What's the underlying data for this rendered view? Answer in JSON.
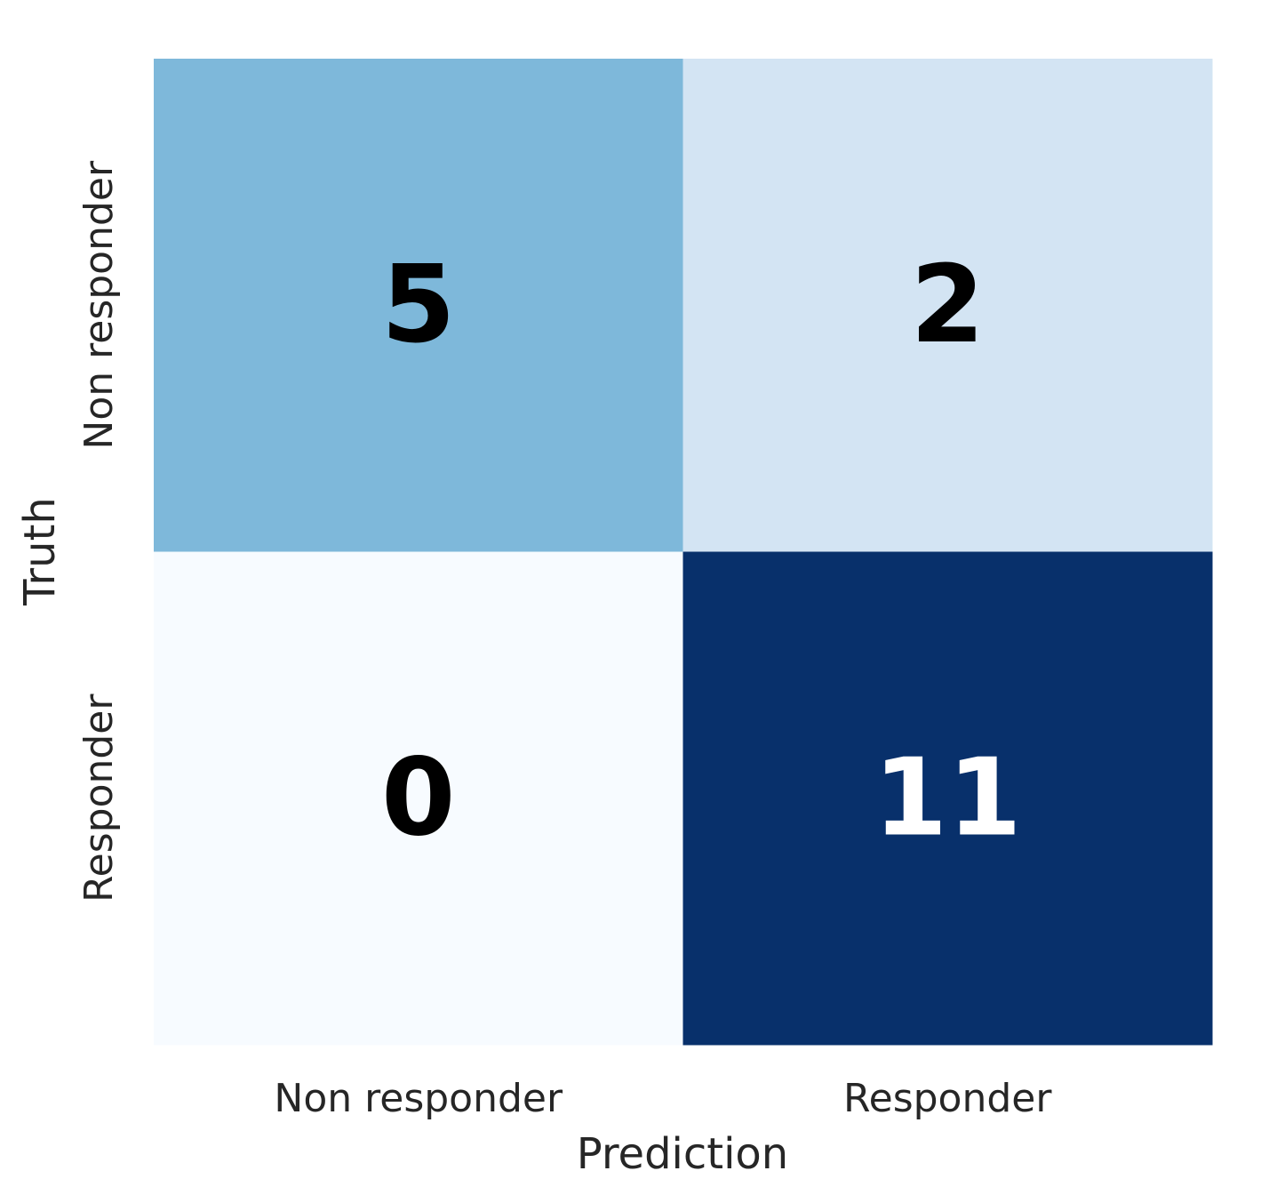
{
  "chart_data": {
    "type": "heatmap",
    "xlabel": "Prediction",
    "ylabel": "Truth",
    "x_categories": [
      "Non responder",
      "Responder"
    ],
    "y_categories": [
      "Non responder",
      "Responder"
    ],
    "values": [
      [
        5,
        2
      ],
      [
        0,
        11
      ]
    ],
    "colormap": "Blues",
    "colors": {
      "low": "#f7fbff",
      "high": "#08306b",
      "dark_text": "#000000",
      "light_text": "#ffffff"
    },
    "grid": false,
    "legend": "none"
  }
}
